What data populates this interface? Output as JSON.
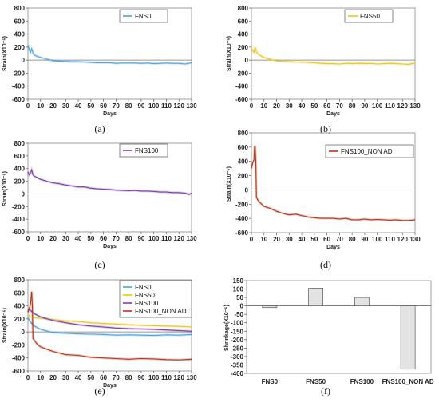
{
  "chart_data": [
    {
      "panel": "(a)",
      "type": "line",
      "ylabel": "Strain(X10⁻⁶)",
      "xlabel": "Days",
      "x_ticks": [
        0,
        10,
        20,
        30,
        40,
        50,
        60,
        70,
        80,
        90,
        100,
        110,
        120,
        130
      ],
      "y_ticks": [
        -600,
        -400,
        -200,
        0,
        200,
        400,
        600,
        800
      ],
      "xlim": [
        0,
        130
      ],
      "ylim": [
        -600,
        800
      ],
      "legend_position": "top-right",
      "series": [
        {
          "name": "FNS0",
          "color": "#4fa3d8",
          "points": [
            [
              0,
              230
            ],
            [
              1,
              160
            ],
            [
              2,
              120
            ],
            [
              3,
              175
            ],
            [
              4,
              110
            ],
            [
              5,
              80
            ],
            [
              7,
              60
            ],
            [
              10,
              40
            ],
            [
              15,
              15
            ],
            [
              20,
              -10
            ],
            [
              25,
              -15
            ],
            [
              30,
              -20
            ],
            [
              35,
              -25
            ],
            [
              40,
              -25
            ],
            [
              45,
              -30
            ],
            [
              50,
              -35
            ],
            [
              55,
              -40
            ],
            [
              60,
              -40
            ],
            [
              65,
              -40
            ],
            [
              70,
              -50
            ],
            [
              75,
              -45
            ],
            [
              80,
              -45
            ],
            [
              85,
              -45
            ],
            [
              90,
              -50
            ],
            [
              95,
              -45
            ],
            [
              100,
              -55
            ],
            [
              105,
              -50
            ],
            [
              110,
              -45
            ],
            [
              115,
              -50
            ],
            [
              120,
              -50
            ],
            [
              125,
              -60
            ],
            [
              130,
              -40
            ]
          ]
        }
      ]
    },
    {
      "panel": "(b)",
      "type": "line",
      "ylabel": "Strain(X10⁻⁶)",
      "xlabel": "Days",
      "x_ticks": [
        0,
        10,
        20,
        30,
        40,
        50,
        60,
        70,
        80,
        90,
        100,
        110,
        120,
        130
      ],
      "y_ticks": [
        -600,
        -400,
        -200,
        0,
        200,
        400,
        600,
        800
      ],
      "xlim": [
        0,
        130
      ],
      "ylim": [
        -600,
        800
      ],
      "legend_position": "top-right",
      "series": [
        {
          "name": "FNS50",
          "color": "#f0c419",
          "points": [
            [
              0,
              180
            ],
            [
              1,
              150
            ],
            [
              2,
              120
            ],
            [
              3,
              200
            ],
            [
              4,
              130
            ],
            [
              5,
              100
            ],
            [
              7,
              70
            ],
            [
              10,
              40
            ],
            [
              15,
              10
            ],
            [
              20,
              -10
            ],
            [
              25,
              -20
            ],
            [
              30,
              -25
            ],
            [
              35,
              -30
            ],
            [
              40,
              -30
            ],
            [
              45,
              -35
            ],
            [
              50,
              -40
            ],
            [
              55,
              -50
            ],
            [
              60,
              -55
            ],
            [
              65,
              -55
            ],
            [
              70,
              -60
            ],
            [
              75,
              -50
            ],
            [
              80,
              -55
            ],
            [
              85,
              -50
            ],
            [
              90,
              -55
            ],
            [
              95,
              -50
            ],
            [
              100,
              -60
            ],
            [
              105,
              -55
            ],
            [
              110,
              -50
            ],
            [
              115,
              -55
            ],
            [
              120,
              -60
            ],
            [
              125,
              -65
            ],
            [
              130,
              -45
            ]
          ]
        }
      ]
    },
    {
      "panel": "(c)",
      "type": "line",
      "ylabel": "Strain(X10⁻⁶)",
      "xlabel": "Days",
      "x_ticks": [
        0,
        10,
        20,
        30,
        40,
        50,
        60,
        70,
        80,
        90,
        100,
        110,
        120,
        130
      ],
      "y_ticks": [
        -600,
        -400,
        -200,
        0,
        200,
        400,
        600,
        800
      ],
      "xlim": [
        0,
        130
      ],
      "ylim": [
        -600,
        800
      ],
      "legend_position": "top-right",
      "series": [
        {
          "name": "FNS100",
          "color": "#7a3fa8",
          "points": [
            [
              0,
              350
            ],
            [
              1,
              300
            ],
            [
              2,
              330
            ],
            [
              3,
              380
            ],
            [
              4,
              300
            ],
            [
              5,
              280
            ],
            [
              7,
              260
            ],
            [
              10,
              230
            ],
            [
              15,
              200
            ],
            [
              20,
              175
            ],
            [
              25,
              160
            ],
            [
              30,
              140
            ],
            [
              35,
              125
            ],
            [
              40,
              110
            ],
            [
              45,
              110
            ],
            [
              50,
              90
            ],
            [
              55,
              80
            ],
            [
              60,
              75
            ],
            [
              65,
              70
            ],
            [
              70,
              60
            ],
            [
              75,
              55
            ],
            [
              80,
              50
            ],
            [
              85,
              55
            ],
            [
              90,
              45
            ],
            [
              95,
              45
            ],
            [
              100,
              40
            ],
            [
              105,
              30
            ],
            [
              110,
              30
            ],
            [
              115,
              20
            ],
            [
              120,
              20
            ],
            [
              125,
              10
            ],
            [
              128,
              -10
            ],
            [
              130,
              10
            ]
          ]
        }
      ]
    },
    {
      "panel": "(d)",
      "type": "line",
      "ylabel": "Strain(X10⁻⁶)",
      "xlabel": "Days",
      "x_ticks": [
        0,
        10,
        20,
        30,
        40,
        50,
        60,
        70,
        80,
        90,
        100,
        110,
        120,
        130
      ],
      "y_ticks": [
        -600,
        -400,
        -200,
        0,
        200,
        400,
        600,
        800
      ],
      "xlim": [
        0,
        130
      ],
      "ylim": [
        -600,
        800
      ],
      "legend_position": "top-right",
      "series": [
        {
          "name": "FNS100_NON AD",
          "color": "#b2361c",
          "points": [
            [
              0,
              300
            ],
            [
              1,
              380
            ],
            [
              2,
              420
            ],
            [
              2.5,
              600
            ],
            [
              3,
              620
            ],
            [
              3.5,
              400
            ],
            [
              4,
              -100
            ],
            [
              5,
              -140
            ],
            [
              7,
              -180
            ],
            [
              10,
              -230
            ],
            [
              15,
              -260
            ],
            [
              20,
              -300
            ],
            [
              25,
              -330
            ],
            [
              30,
              -350
            ],
            [
              35,
              -340
            ],
            [
              40,
              -360
            ],
            [
              45,
              -380
            ],
            [
              50,
              -390
            ],
            [
              55,
              -400
            ],
            [
              60,
              -400
            ],
            [
              65,
              -400
            ],
            [
              70,
              -410
            ],
            [
              75,
              -400
            ],
            [
              80,
              -420
            ],
            [
              85,
              -420
            ],
            [
              90,
              -410
            ],
            [
              95,
              -420
            ],
            [
              100,
              -415
            ],
            [
              105,
              -420
            ],
            [
              110,
              -425
            ],
            [
              115,
              -420
            ],
            [
              120,
              -430
            ],
            [
              125,
              -430
            ],
            [
              130,
              -420
            ]
          ]
        }
      ]
    },
    {
      "panel": "(e)",
      "type": "line",
      "ylabel": "Strain(X10⁻⁶)",
      "xlabel": "Days",
      "x_ticks": [
        0,
        10,
        20,
        30,
        40,
        50,
        60,
        70,
        80,
        90,
        100,
        110,
        120,
        130
      ],
      "y_ticks": [
        -600,
        -400,
        -200,
        0,
        200,
        400,
        600,
        800
      ],
      "xlim": [
        0,
        130
      ],
      "ylim": [
        -600,
        800
      ],
      "legend_position": "top-right",
      "series": [
        {
          "name": "FNS0",
          "color": "#4fa3d8",
          "points": [
            [
              0,
              220
            ],
            [
              2,
              150
            ],
            [
              5,
              90
            ],
            [
              10,
              40
            ],
            [
              20,
              -10
            ],
            [
              30,
              -20
            ],
            [
              40,
              -30
            ],
            [
              50,
              -35
            ],
            [
              60,
              -40
            ],
            [
              70,
              -50
            ],
            [
              80,
              -45
            ],
            [
              90,
              -50
            ],
            [
              100,
              -55
            ],
            [
              110,
              -45
            ],
            [
              120,
              -50
            ],
            [
              130,
              -40
            ]
          ]
        },
        {
          "name": "FNS50",
          "color": "#f0c419",
          "points": [
            [
              0,
              260
            ],
            [
              2,
              230
            ],
            [
              5,
              220
            ],
            [
              10,
              210
            ],
            [
              20,
              190
            ],
            [
              30,
              170
            ],
            [
              40,
              160
            ],
            [
              50,
              140
            ],
            [
              60,
              130
            ],
            [
              70,
              120
            ],
            [
              80,
              110
            ],
            [
              90,
              100
            ],
            [
              100,
              95
            ],
            [
              110,
              90
            ],
            [
              120,
              85
            ],
            [
              130,
              75
            ]
          ]
        },
        {
          "name": "FNS100",
          "color": "#7a3fa8",
          "points": [
            [
              0,
              350
            ],
            [
              2,
              330
            ],
            [
              5,
              280
            ],
            [
              10,
              230
            ],
            [
              20,
              175
            ],
            [
              30,
              140
            ],
            [
              40,
              110
            ],
            [
              50,
              90
            ],
            [
              60,
              75
            ],
            [
              70,
              60
            ],
            [
              80,
              50
            ],
            [
              90,
              45
            ],
            [
              100,
              40
            ],
            [
              110,
              30
            ],
            [
              120,
              20
            ],
            [
              130,
              10
            ]
          ]
        },
        {
          "name": "FNS100_NON AD",
          "color": "#b2361c",
          "points": [
            [
              0,
              300
            ],
            [
              2,
              420
            ],
            [
              3,
              620
            ],
            [
              3.5,
              400
            ],
            [
              4,
              -100
            ],
            [
              7,
              -180
            ],
            [
              10,
              -230
            ],
            [
              20,
              -300
            ],
            [
              30,
              -350
            ],
            [
              40,
              -360
            ],
            [
              50,
              -390
            ],
            [
              60,
              -400
            ],
            [
              70,
              -410
            ],
            [
              80,
              -420
            ],
            [
              90,
              -410
            ],
            [
              100,
              -415
            ],
            [
              110,
              -425
            ],
            [
              120,
              -430
            ],
            [
              130,
              -420
            ]
          ]
        }
      ]
    },
    {
      "panel": "(f)",
      "type": "bar",
      "ylabel": "Shrinkage(X10⁻⁶)",
      "categories": [
        "FNS0",
        "FNS50",
        "FNS100",
        "FNS100_NON AD"
      ],
      "values": [
        -10,
        105,
        50,
        -375
      ],
      "ylim": [
        -400,
        150
      ],
      "y_ticks": [
        150,
        100,
        50,
        0,
        -50,
        -100,
        -150,
        -200,
        -250,
        -300,
        -350,
        -400
      ],
      "bar_color": "#e3e3e3"
    }
  ],
  "panel_labels": [
    "(a)",
    "(b)",
    "(c)",
    "(d)",
    "(e)",
    "(f)"
  ]
}
